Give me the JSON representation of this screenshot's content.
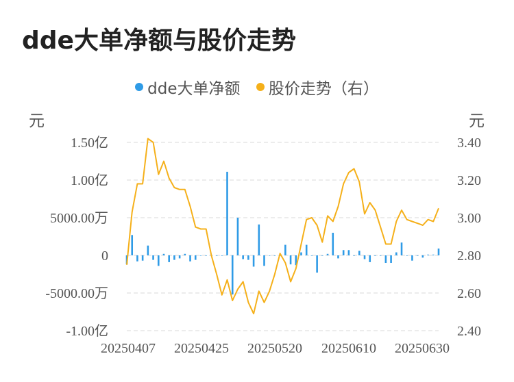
{
  "title": "dde大单净额与股价走势",
  "legend": {
    "bar_label": "dde大单净额",
    "line_label": "股价走势（右）"
  },
  "units": {
    "left": "元",
    "right": "元"
  },
  "colors": {
    "bar": "#2f9be6",
    "line": "#f5b01a",
    "grid": "#e6e6e6"
  },
  "chart_data": {
    "type": "bar+line",
    "x_tick_labels": [
      "20250407",
      "20250425",
      "20250520",
      "20250610",
      "20250630"
    ],
    "y_left_ticks": [
      "1.50亿",
      "1.00亿",
      "5000.00万",
      "0",
      "-5000.00万",
      "-1.00亿"
    ],
    "y_right_ticks": [
      "3.40",
      "3.20",
      "3.00",
      "2.80",
      "2.60",
      "2.40"
    ],
    "y_left_range": [
      -100000000,
      150000000
    ],
    "y_right_range": [
      2.4,
      3.4
    ],
    "grid": true,
    "legend_position": "top-center",
    "series": [
      {
        "name": "dde大单净额",
        "axis": "left",
        "kind": "bar",
        "values": [
          -12000000,
          27000000,
          -8000000,
          -7000000,
          13000000,
          -6000000,
          -14000000,
          2000000,
          -9000000,
          -6000000,
          -4000000,
          2000000,
          -8000000,
          -6000000,
          0,
          0,
          0,
          0,
          0,
          111000000,
          -52000000,
          50000000,
          -5000000,
          -6000000,
          -15000000,
          41000000,
          -14000000,
          0,
          0,
          0,
          14000000,
          -12000000,
          -13000000,
          4000000,
          14000000,
          0,
          -23000000,
          0,
          2000000,
          30000000,
          -4000000,
          7000000,
          7000000,
          0,
          6000000,
          -5000000,
          -9000000,
          0,
          0,
          -10000000,
          -10000000,
          4000000,
          17000000,
          0,
          -7000000,
          0,
          -3000000,
          1000000,
          1000000,
          9000000
        ]
      },
      {
        "name": "股价走势（右）",
        "axis": "right",
        "kind": "line",
        "values": [
          2.75,
          3.03,
          3.18,
          3.18,
          3.42,
          3.4,
          3.23,
          3.3,
          3.21,
          3.16,
          3.15,
          3.15,
          3.06,
          2.95,
          2.94,
          2.94,
          2.8,
          2.7,
          2.59,
          2.67,
          2.56,
          2.62,
          2.66,
          2.55,
          2.49,
          2.61,
          2.55,
          2.61,
          2.7,
          2.81,
          2.76,
          2.66,
          2.73,
          2.86,
          2.99,
          3.0,
          2.96,
          2.87,
          3.01,
          2.98,
          3.06,
          3.18,
          3.24,
          3.26,
          3.19,
          3.02,
          3.08,
          3.04,
          2.95,
          2.86,
          2.86,
          2.98,
          3.04,
          2.99,
          2.98,
          2.97,
          2.96,
          2.99,
          2.98,
          3.05
        ]
      }
    ]
  }
}
